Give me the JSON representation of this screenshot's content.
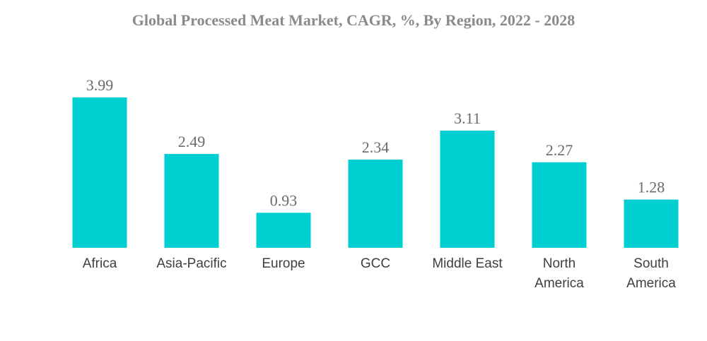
{
  "chart_data": {
    "type": "bar",
    "title": "Global Processed Meat Market, CAGR, %, By Region, 2022 - 2028",
    "categories": [
      [
        "Africa"
      ],
      [
        "Asia-Pacific"
      ],
      [
        "Europe"
      ],
      [
        "GCC"
      ],
      [
        "Middle East"
      ],
      [
        "North",
        "America"
      ],
      [
        "South",
        "America"
      ]
    ],
    "values": [
      3.99,
      2.49,
      0.93,
      2.34,
      3.11,
      2.27,
      1.28
    ],
    "value_labels": [
      "3.99",
      "2.49",
      "0.93",
      "2.34",
      "3.11",
      "2.27",
      "1.28"
    ],
    "xlabel": "",
    "ylabel": "",
    "ylim": [
      0,
      3.99
    ],
    "grid": false,
    "legend": "none",
    "bar_color": "#00cfd1"
  }
}
